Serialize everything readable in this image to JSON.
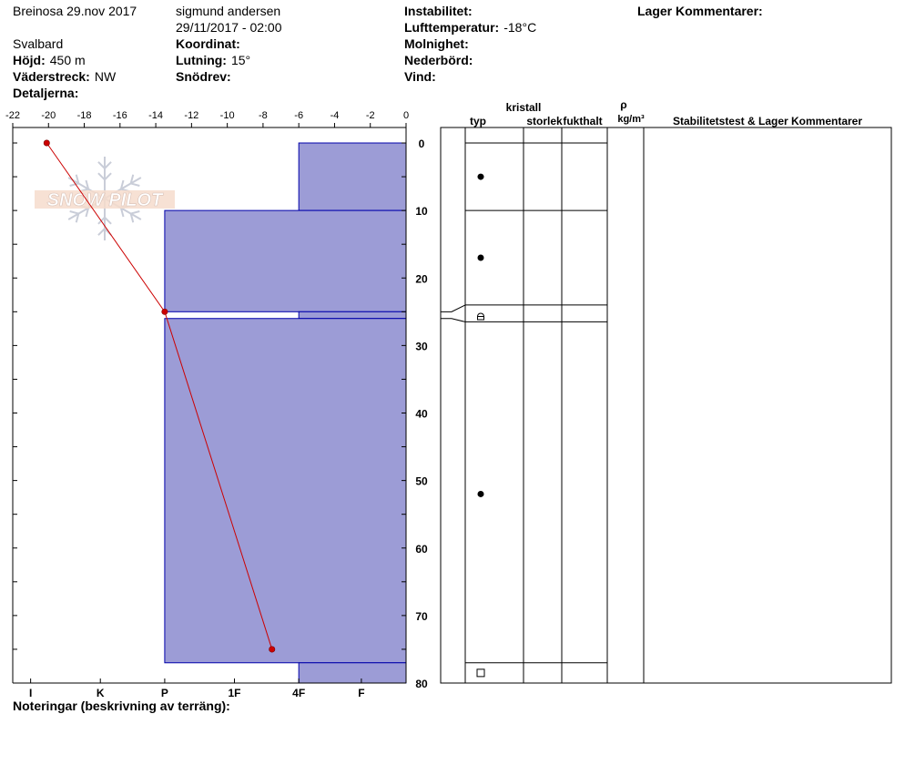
{
  "header": {
    "site_date": "Breinosa 29.nov 2017",
    "region": "Svalbard",
    "elevation_label": "Höjd:",
    "elevation_value": "450 m",
    "aspect_label": "Väderstreck:",
    "aspect_value": "NW",
    "details_label": "Detaljerna:",
    "observer": "sigmund andersen",
    "datetime": "29/11/2017 - 02:00",
    "coordinate_label": "Koordinat:",
    "slope_label": "Lutning:",
    "slope_value": "15°",
    "drift_label": "Snödrev:",
    "instability_label": "Instabilitet:",
    "airtemp_label": "Lufttemperatur:",
    "airtemp_value": "-18°C",
    "cloud_label": "Molnighet:",
    "precip_label": "Nederbörd:",
    "wind_label": "Vind:",
    "layer_comments_label": "Lager Kommentarer:"
  },
  "logo": {
    "text": "SNOW PILOT"
  },
  "notes": {
    "label": "Noteringar (beskrivning av terräng):"
  },
  "table": {
    "col_type": "typ",
    "col_crystal": "kristall",
    "col_size": "storlek",
    "col_moisture": "fukthalt",
    "col_rho": "ρ",
    "col_density_unit": "kg/m³",
    "col_stability": "Stabilitetstest & Lager Kommentarer"
  },
  "chart_data": {
    "type": "snow_profile",
    "temperature": {
      "x_ticks": [
        -22,
        -20,
        -18,
        -16,
        -14,
        -12,
        -10,
        -8,
        -6,
        -4,
        -2,
        0
      ],
      "x_tick_labels": [
        "-22",
        "-20",
        "-18",
        "-16",
        "-14",
        "-12",
        "-10",
        "-8",
        "-6",
        "-4",
        "-2",
        "0"
      ],
      "xlim": [
        -22,
        0
      ],
      "points": [
        {
          "depth": 0,
          "temp": -20.1
        },
        {
          "depth": 25,
          "temp": -13.5
        },
        {
          "depth": 75,
          "temp": -7.5
        }
      ],
      "color": "#cc0000"
    },
    "depth_axis": {
      "ylim": [
        0,
        80
      ],
      "ticks": [
        0,
        10,
        20,
        30,
        40,
        50,
        60,
        70,
        80
      ],
      "tick_labels": [
        "0",
        "10",
        "20",
        "30",
        "40",
        "50",
        "60",
        "70",
        "80"
      ]
    },
    "hardness_axis": {
      "labels": [
        "I",
        "K",
        "P",
        "1F",
        "4F",
        "F"
      ],
      "temp_positions": [
        -21,
        -17.1,
        -13.5,
        -9.6,
        -6,
        -2.5
      ]
    },
    "hardness_layers": [
      {
        "top": 0,
        "bottom": 10,
        "hardness": "4F",
        "left_temp": -6
      },
      {
        "top": 10,
        "bottom": 25,
        "hardness": "P",
        "left_temp": -13.5
      },
      {
        "top": 25,
        "bottom": 26,
        "hardness": "4F",
        "left_temp": -6
      },
      {
        "top": 26,
        "bottom": 77,
        "hardness": "P",
        "left_temp": -13.5
      },
      {
        "top": 77,
        "bottom": 80,
        "hardness": "4F",
        "left_temp": -6
      }
    ],
    "layer_fill": "#9c9cd6",
    "layer_stroke": "#0000aa",
    "table_boundaries": [
      0,
      10,
      24,
      26.5,
      77,
      80
    ],
    "grain_symbols": [
      {
        "depth": 5,
        "icon": "rounded-grains-icon"
      },
      {
        "depth": 17,
        "icon": "rounded-grains-icon"
      },
      {
        "depth": 25.7,
        "icon": "faceted-rounded-icon"
      },
      {
        "depth": 52,
        "icon": "rounded-grains-icon"
      },
      {
        "depth": 78.5,
        "icon": "faceted-crystals-icon"
      }
    ]
  }
}
